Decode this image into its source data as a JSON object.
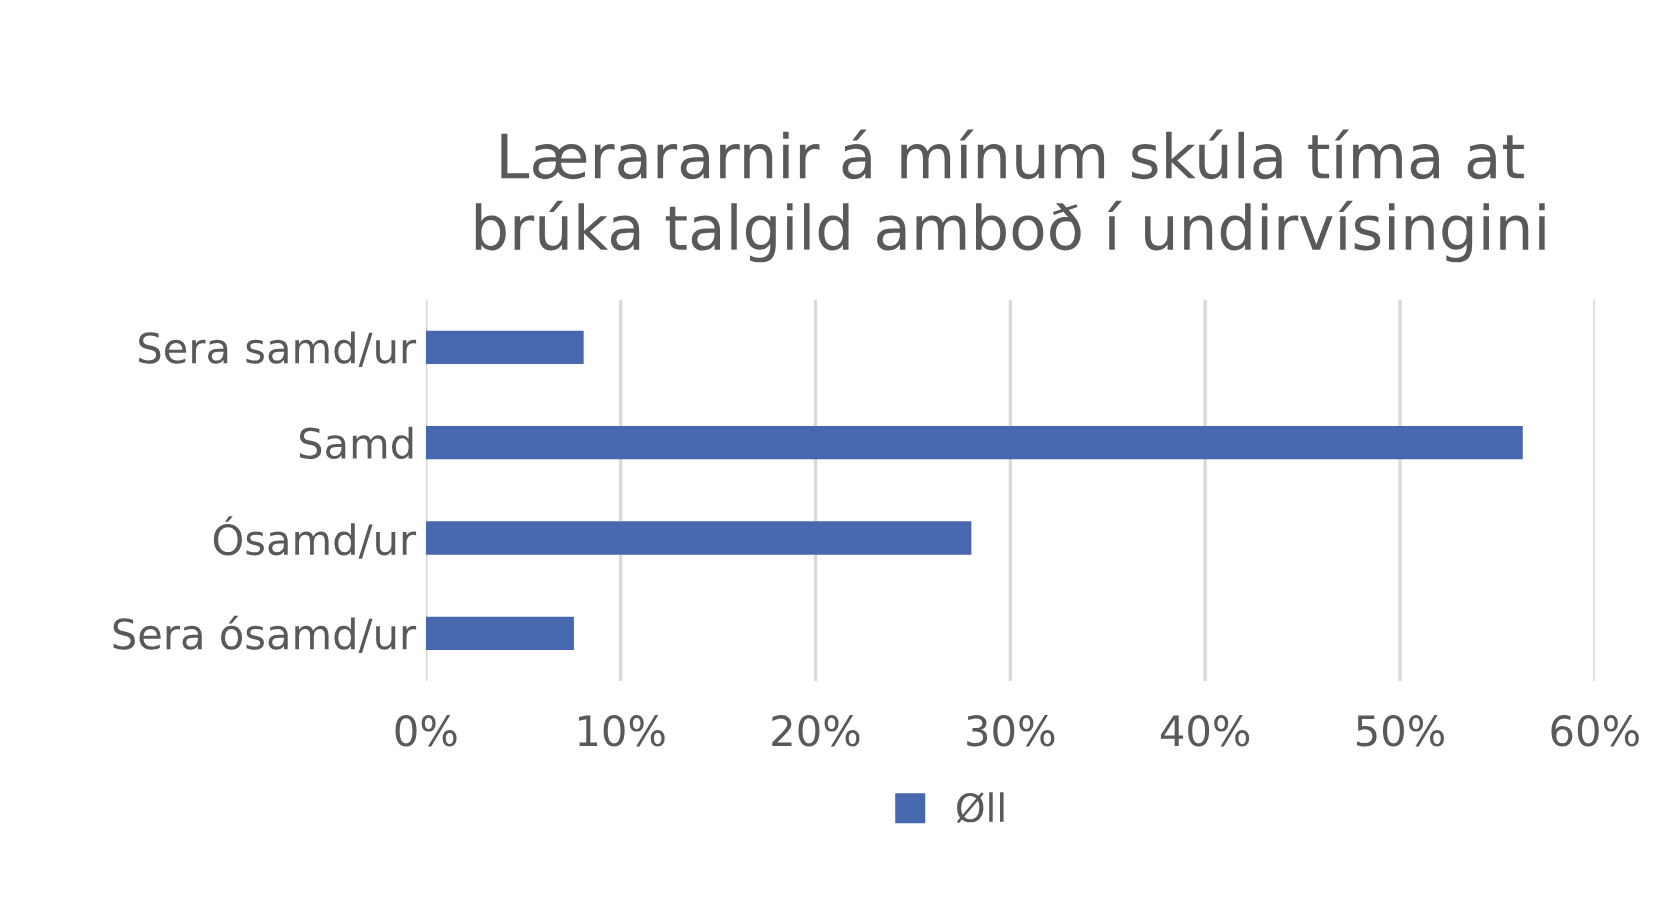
{
  "chart_data": {
    "type": "bar",
    "orientation": "horizontal",
    "title": "Lærararnir á mínum skúla tíma at\nbrúka talgild amboð í undirvísingini",
    "categories": [
      "Sera samd/ur",
      "Samd",
      "Ósamd/ur",
      "Sera ósamd/ur"
    ],
    "series": [
      {
        "name": "Øll",
        "color": "#4767ae",
        "values": [
          0.081,
          0.563,
          0.28,
          0.076
        ]
      }
    ],
    "xlim": [
      0,
      0.6
    ],
    "xticks": [
      {
        "value": 0,
        "label": "0%"
      },
      {
        "value": 0.1,
        "label": "10%"
      },
      {
        "value": 0.2,
        "label": "20%"
      },
      {
        "value": 0.3,
        "label": "30%"
      },
      {
        "value": 0.4,
        "label": "40%"
      },
      {
        "value": 0.5,
        "label": "50%"
      },
      {
        "value": 0.6,
        "label": "60%"
      }
    ],
    "grid": "x",
    "legend": "bottom"
  }
}
